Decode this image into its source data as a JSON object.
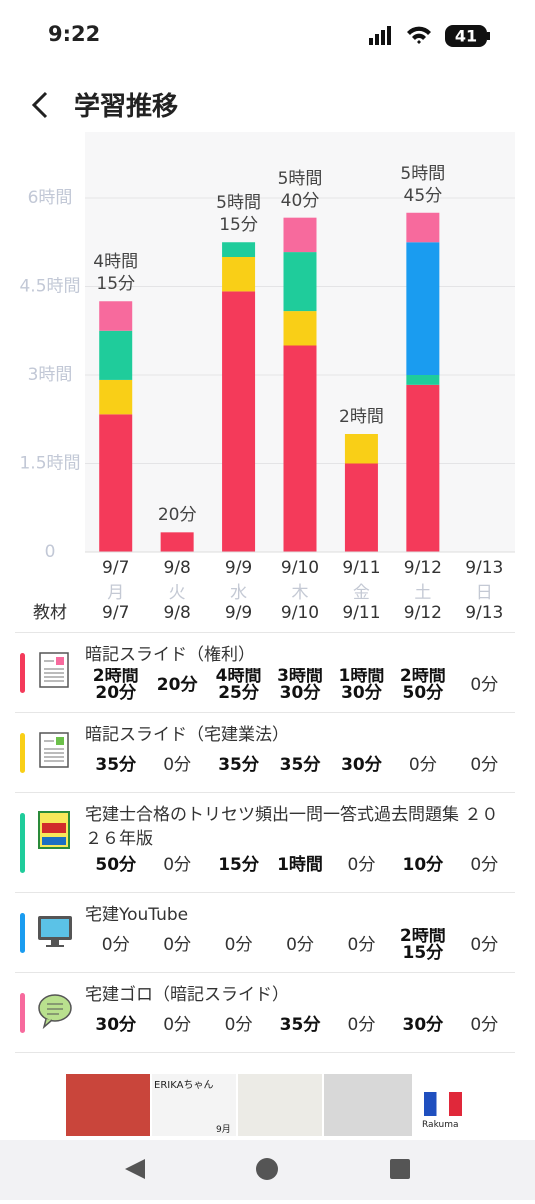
{
  "status_bar": {
    "time": "9:22",
    "battery": "41"
  },
  "header": {
    "title": "学習推移"
  },
  "chart_data": {
    "type": "stacked-bar",
    "categories": [
      "9/7",
      "9/8",
      "9/9",
      "9/10",
      "9/11",
      "9/12",
      "9/13"
    ],
    "weekdays": [
      "月",
      "火",
      "水",
      "木",
      "金",
      "土",
      "日"
    ],
    "ylim": [
      0,
      7
    ],
    "yticks": [
      0,
      {
        "value": 1.5,
        "label": "1.5時間"
      },
      {
        "value": 3,
        "label": "3時間"
      },
      {
        "value": 4.5,
        "label": "4.5時間"
      },
      {
        "value": 6,
        "label": "6時間"
      }
    ],
    "grid": true,
    "series": [
      {
        "name": "暗記スライド（権利）",
        "color": "#f43a5a",
        "values": [
          2.3333,
          0.3333,
          4.4167,
          3.5,
          1.5,
          2.8333,
          0
        ],
        "value_labels": [
          "2時間\n20分",
          "20分",
          "4時間\n25分",
          "3時間\n30分",
          "1時間\n30分",
          "2時間\n50分",
          "0分"
        ]
      },
      {
        "name": "暗記スライド（宅建業法）",
        "color": "#f9cf17",
        "values": [
          0.5833,
          0,
          0.5833,
          0.5833,
          0.5,
          0,
          0
        ],
        "value_labels": [
          "35分",
          "0分",
          "35分",
          "35分",
          "30分",
          "0分",
          "0分"
        ]
      },
      {
        "name": "宅建士合格のトリセツ頻出一問一答式過去問題集 ２０２６年版",
        "color": "#1fcc9b",
        "values": [
          0.8333,
          0,
          0.25,
          1,
          0,
          0.1667,
          0
        ],
        "value_labels": [
          "50分",
          "0分",
          "15分",
          "1時間",
          "0分",
          "10分",
          "0分"
        ]
      },
      {
        "name": "宅建YouTube",
        "color": "#1a9cf0",
        "values": [
          0,
          0,
          0,
          0,
          0,
          2.25,
          0
        ],
        "value_labels": [
          "0分",
          "0分",
          "0分",
          "0分",
          "0分",
          "2時間\n15分",
          "0分"
        ]
      },
      {
        "name": "宅建ゴロ（暗記スライド）",
        "color": "#f76a9d",
        "values": [
          0.5,
          0,
          0,
          0.5833,
          0,
          0.5,
          0
        ],
        "value_labels": [
          "30分",
          "0分",
          "0分",
          "35分",
          "0分",
          "30分",
          "0分"
        ]
      }
    ],
    "totals": {
      "values": [
        4.25,
        0.3333,
        5.25,
        5.6667,
        2,
        5.75,
        0
      ],
      "value_labels": [
        "4時間\n15分",
        "20分",
        "5時間\n15分",
        "5時間\n40分",
        "2時間",
        "5時間\n45分",
        null
      ]
    },
    "table_label": "教材"
  },
  "ad": {
    "caption": "ERIKAちゃん",
    "month": "9月",
    "brand": "Rakuma"
  }
}
